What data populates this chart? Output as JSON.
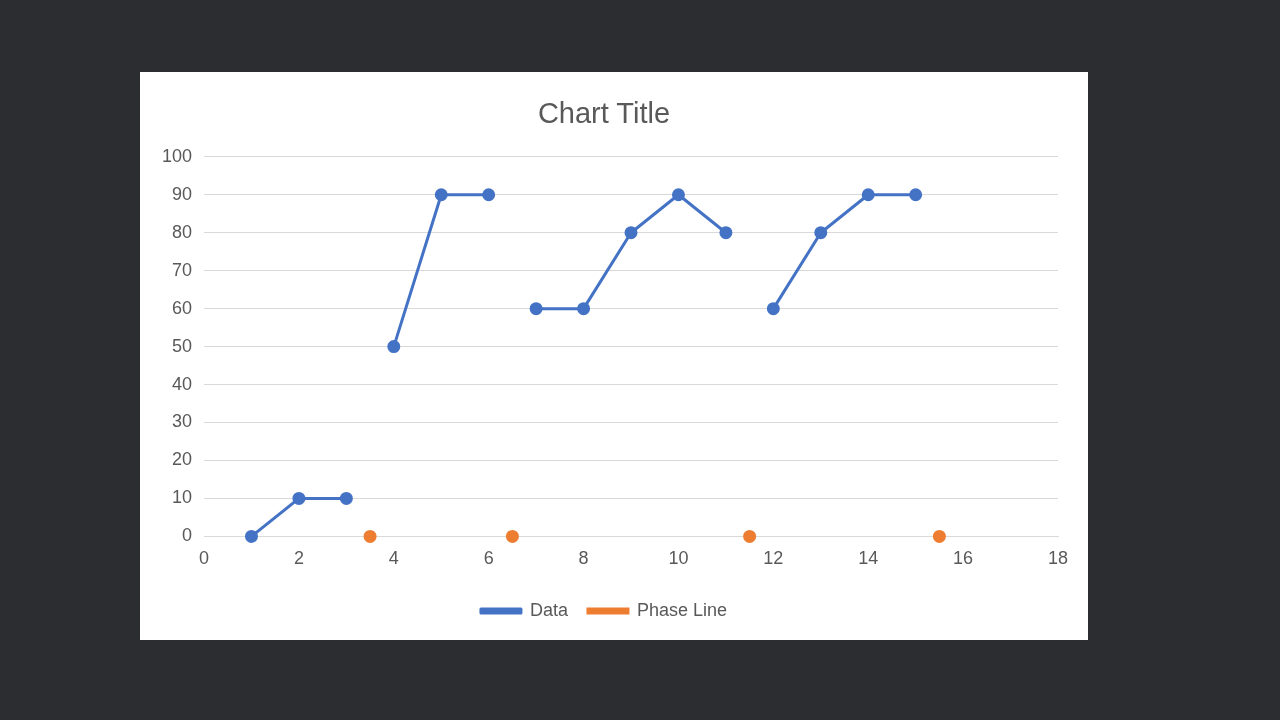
{
  "chart_data": {
    "type": "line",
    "title": "Chart Title",
    "series": [
      {
        "name": "Data",
        "color": "#4472c4",
        "x": [
          1,
          2,
          3,
          3.5,
          4,
          5,
          6,
          6.5,
          7,
          8,
          9,
          10,
          11,
          11.5,
          12,
          13,
          14,
          15
        ],
        "values": [
          0,
          10,
          10,
          null,
          50,
          90,
          90,
          null,
          60,
          60,
          80,
          90,
          80,
          null,
          60,
          80,
          90,
          90
        ]
      },
      {
        "name": "Phase Line",
        "type": "scatter",
        "color": "#ed7d31",
        "x": [
          3.5,
          6.5,
          11.5,
          15.5
        ],
        "values": [
          0,
          0,
          0,
          0
        ]
      }
    ],
    "xlim": [
      0,
      18
    ],
    "xticks": [
      0,
      2,
      4,
      6,
      8,
      10,
      12,
      14,
      16,
      18
    ],
    "ylim": [
      0,
      100
    ],
    "yticks": [
      0,
      10,
      20,
      30,
      40,
      50,
      60,
      70,
      80,
      90,
      100
    ],
    "grid": "y",
    "legend": "bottom",
    "marker": "circle",
    "line_style": "solid"
  }
}
